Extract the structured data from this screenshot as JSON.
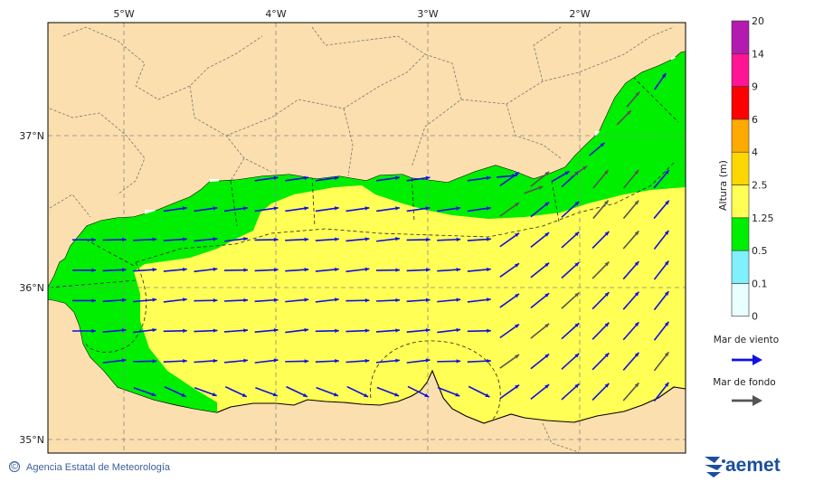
{
  "map": {
    "lon_labels": [
      "5°W",
      "4°W",
      "3°W",
      "2°W"
    ],
    "lat_labels": [
      "37°N",
      "36°N",
      "35°N"
    ]
  },
  "legend": {
    "title": "Altura (m)",
    "levels": [
      "0",
      "0.1",
      "0.5",
      "1.25",
      "2.5",
      "4",
      "6",
      "9",
      "14",
      "20"
    ],
    "colors": [
      "#e8ffff",
      "#80f0ff",
      "#00ee00",
      "#ffff55",
      "#ffd700",
      "#ffaa00",
      "#ff0000",
      "#ff1493",
      "#b21ab0"
    ],
    "wind_sea_label": "Mar de viento",
    "wind_sea_color": "#1010e0",
    "swell_label": "Mar de fondo",
    "swell_color": "#555555"
  },
  "footer": {
    "copyright_symbol": "©",
    "agency": "Agencia Estatal de Meteorología",
    "brand": "aemet"
  },
  "colors": {
    "land": "#fbdfae",
    "sea_green": "#00ee00",
    "sea_yellow": "#ffff55"
  }
}
